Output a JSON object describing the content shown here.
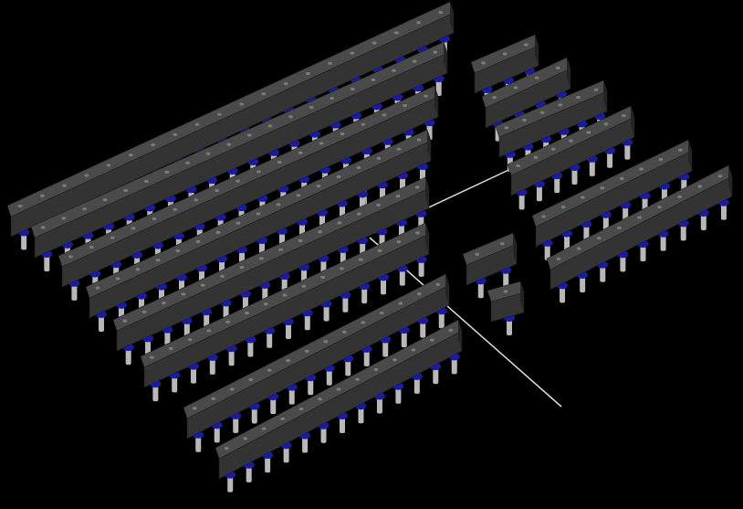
{
  "scene": {
    "background": "#000000",
    "bar_top_color": "#4a4a4a",
    "bar_front_color": "#333333",
    "bar_side_color": "#242424",
    "hole_color": "#7a7a7a",
    "collar_color": "#1a1aa8",
    "pin_color": "#b8b8b8",
    "axis_color": "#dcdcdc",
    "pin_headers": [
      {
        "group": "left",
        "pins": 20
      },
      {
        "group": "left",
        "pins": 20
      },
      {
        "group": "left",
        "pins": 18
      },
      {
        "group": "left",
        "pins": 17
      },
      {
        "group": "left",
        "pins": 16
      },
      {
        "group": "left",
        "pins": 15
      },
      {
        "group": "left",
        "pins": 14
      },
      {
        "group": "left",
        "pins": 13
      },
      {
        "group": "right",
        "pins": 3
      },
      {
        "group": "right",
        "pins": 4
      },
      {
        "group": "right",
        "pins": 6
      },
      {
        "group": "right",
        "pins": 7
      },
      {
        "group": "right",
        "pins": 8
      },
      {
        "group": "right",
        "pins": 9
      },
      {
        "group": "center",
        "pins": 2
      },
      {
        "group": "center",
        "pins": 1
      }
    ]
  }
}
